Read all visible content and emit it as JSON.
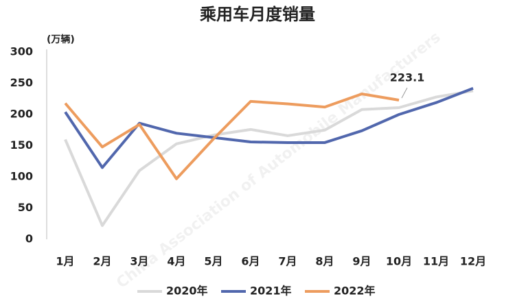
{
  "chart_data": {
    "type": "line",
    "title": "乘用车月度销量",
    "unit_label": "(万辆)",
    "watermark": "China Association of Automobile Manufacturers",
    "categories": [
      "1月",
      "2月",
      "3月",
      "4月",
      "5月",
      "6月",
      "7月",
      "8月",
      "9月",
      "10月",
      "11月",
      "12月"
    ],
    "series": [
      {
        "name": "2020年",
        "color": "#d9d9d9",
        "values": [
          160,
          22,
          110,
          153,
          167,
          176,
          166,
          175,
          208,
          211,
          228,
          238
        ]
      },
      {
        "name": "2021年",
        "color": "#5167ad",
        "values": [
          204,
          115,
          186,
          170,
          163,
          156,
          155,
          155,
          174,
          200,
          219,
          242
        ]
      },
      {
        "name": "2022年",
        "color": "#ed9c5e",
        "values": [
          218,
          148,
          184,
          97,
          161,
          221,
          217,
          212,
          233,
          223.1,
          null,
          null
        ]
      }
    ],
    "labeled_point": {
      "series": 2,
      "index": 9
    },
    "ylim": [
      0,
      300
    ],
    "yticks": [
      0,
      50,
      100,
      150,
      200,
      250,
      300
    ],
    "grid": false,
    "legend": "bottom"
  }
}
